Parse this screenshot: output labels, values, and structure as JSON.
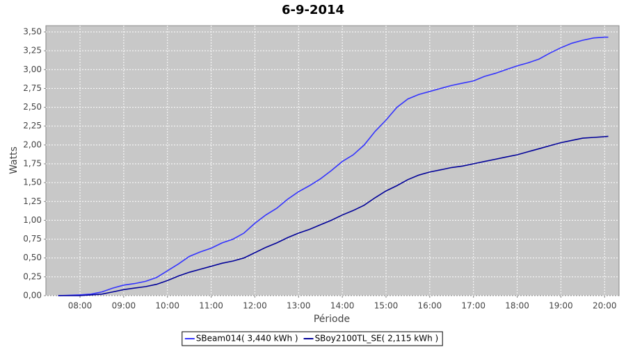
{
  "chart_data": {
    "type": "line",
    "title": "6-9-2014",
    "x_label": "Période",
    "y_label": "Watts",
    "x": [
      7.5,
      8,
      8.25,
      8.5,
      8.75,
      9,
      9.25,
      9.5,
      9.75,
      10,
      10.25,
      10.5,
      10.75,
      11,
      11.25,
      11.5,
      11.75,
      12,
      12.25,
      12.5,
      12.75,
      13,
      13.25,
      13.5,
      13.75,
      14,
      14.25,
      14.5,
      14.75,
      15,
      15.25,
      15.5,
      15.75,
      16,
      16.25,
      16.5,
      16.75,
      17,
      17.25,
      17.5,
      17.75,
      18,
      18.25,
      18.5,
      18.75,
      19,
      19.25,
      19.5,
      19.75,
      20,
      20.083
    ],
    "series": [
      {
        "name": "SBeam014( 3,440 kWh )",
        "color": "#3333ff",
        "values": [
          0,
          0.01,
          0.02,
          0.05,
          0.1,
          0.14,
          0.16,
          0.19,
          0.24,
          0.33,
          0.42,
          0.52,
          0.58,
          0.63,
          0.7,
          0.75,
          0.83,
          0.96,
          1.07,
          1.16,
          1.28,
          1.38,
          1.46,
          1.55,
          1.66,
          1.78,
          1.87,
          2.0,
          2.18,
          2.33,
          2.5,
          2.61,
          2.67,
          2.71,
          2.75,
          2.79,
          2.82,
          2.85,
          2.91,
          2.95,
          3.0,
          3.05,
          3.09,
          3.14,
          3.22,
          3.29,
          3.35,
          3.39,
          3.42,
          3.43,
          3.43
        ]
      },
      {
        "name": "SBoy2100TL_SE( 2,115 kWh )",
        "color": "#000099",
        "values": [
          0,
          0.0,
          0.01,
          0.02,
          0.05,
          0.08,
          0.1,
          0.12,
          0.15,
          0.2,
          0.26,
          0.31,
          0.35,
          0.39,
          0.43,
          0.46,
          0.5,
          0.57,
          0.64,
          0.7,
          0.77,
          0.83,
          0.88,
          0.94,
          1.0,
          1.07,
          1.13,
          1.2,
          1.3,
          1.39,
          1.46,
          1.54,
          1.6,
          1.64,
          1.67,
          1.7,
          1.72,
          1.75,
          1.78,
          1.81,
          1.84,
          1.87,
          1.91,
          1.95,
          1.99,
          2.03,
          2.06,
          2.09,
          2.1,
          2.11,
          2.115
        ]
      }
    ],
    "xlim": [
      7.22,
      20.33
    ],
    "xticks": [
      {
        "value": 8,
        "label": "08:00"
      },
      {
        "value": 9,
        "label": "09:00"
      },
      {
        "value": 10,
        "label": "10:00"
      },
      {
        "value": 11,
        "label": "11:00"
      },
      {
        "value": 12,
        "label": "12:00"
      },
      {
        "value": 13,
        "label": "13:00"
      },
      {
        "value": 14,
        "label": "14:00"
      },
      {
        "value": 15,
        "label": "15:00"
      },
      {
        "value": 16,
        "label": "16:00"
      },
      {
        "value": 17,
        "label": "17:00"
      },
      {
        "value": 18,
        "label": "18:00"
      },
      {
        "value": 19,
        "label": "19:00"
      },
      {
        "value": 20,
        "label": "20:00"
      }
    ],
    "ylim": [
      0,
      3.583
    ],
    "yticks": [
      {
        "value": 0,
        "label": "0,00"
      },
      {
        "value": 0.25,
        "label": "0,25"
      },
      {
        "value": 0.5,
        "label": "0,50"
      },
      {
        "value": 0.75,
        "label": "0,75"
      },
      {
        "value": 1,
        "label": "1,00"
      },
      {
        "value": 1.25,
        "label": "1,25"
      },
      {
        "value": 1.5,
        "label": "1,50"
      },
      {
        "value": 1.75,
        "label": "1,75"
      },
      {
        "value": 2,
        "label": "2,00"
      },
      {
        "value": 2.25,
        "label": "2,25"
      },
      {
        "value": 2.5,
        "label": "2,50"
      },
      {
        "value": 2.75,
        "label": "2,75"
      },
      {
        "value": 3,
        "label": "3,00"
      },
      {
        "value": 3.25,
        "label": "3,25"
      },
      {
        "value": 3.5,
        "label": "3,50"
      }
    ],
    "grid": true,
    "legend": "bottom"
  }
}
